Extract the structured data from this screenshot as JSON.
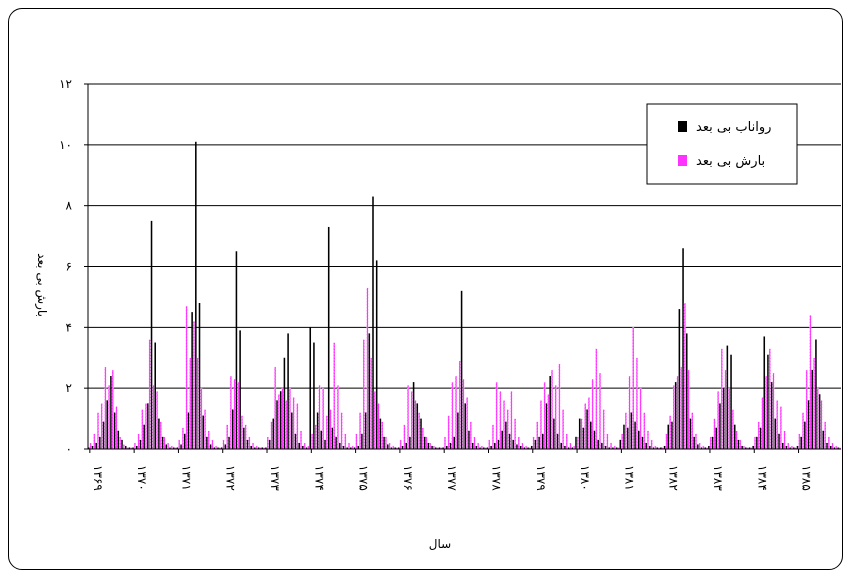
{
  "chart_data": {
    "type": "bar",
    "title": "",
    "xlabel": "سال",
    "ylabel": "بارش بی بعد",
    "ylim": [
      0,
      12
    ],
    "yticks": [
      {
        "value": 0,
        "label": "۰"
      },
      {
        "value": 2,
        "label": "۲"
      },
      {
        "value": 4,
        "label": "۴"
      },
      {
        "value": 6,
        "label": "۶"
      },
      {
        "value": 8,
        "label": "۸"
      },
      {
        "value": 10,
        "label": "۱۰"
      },
      {
        "value": 12,
        "label": "۱۲"
      }
    ],
    "year_labels": [
      "۱۳۶۹",
      "۱۳۷۰",
      "۱۳۷۱",
      "۱۳۷۲",
      "۱۳۷۳",
      "۱۳۷۴",
      "۱۳۷۵",
      "۱۳۷۶",
      "۱۳۷۷",
      "۱۳۷۸",
      "۱۳۷۹",
      "۱۳۸۰",
      "۱۳۸۱",
      "۱۳۸۲",
      "۱۳۸۳",
      "۱۳۸۴",
      "۱۳۸۵"
    ],
    "grid": true,
    "legend": {
      "position": "top-right"
    },
    "series": [
      {
        "name": "رواناب بی بعد",
        "color": "#000000",
        "values": [
          0.05,
          0.1,
          0.2,
          0.4,
          0.9,
          1.6,
          2.4,
          1.2,
          0.6,
          0.3,
          0.1,
          0.05,
          0.05,
          0.1,
          0.3,
          0.8,
          1.5,
          7.5,
          3.5,
          1.0,
          0.4,
          0.15,
          0.05,
          0.05,
          0.05,
          0.15,
          0.5,
          1.2,
          4.5,
          10.1,
          4.8,
          1.1,
          0.4,
          0.15,
          0.05,
          0.05,
          0.05,
          0.15,
          0.4,
          1.3,
          6.5,
          3.9,
          0.7,
          0.3,
          0.1,
          0.05,
          0.05,
          0.05,
          0.05,
          0.3,
          1.0,
          1.6,
          1.9,
          3.0,
          3.8,
          1.2,
          0.5,
          0.2,
          0.1,
          0.05,
          4.0,
          3.5,
          1.2,
          0.6,
          0.3,
          7.3,
          0.7,
          0.4,
          0.2,
          0.1,
          0.05,
          0.05,
          0.05,
          0.1,
          0.5,
          1.2,
          3.8,
          8.3,
          6.2,
          1.0,
          0.4,
          0.15,
          0.05,
          0.05,
          0.05,
          0.1,
          0.2,
          0.4,
          2.2,
          1.5,
          1.0,
          0.4,
          0.2,
          0.1,
          0.05,
          0.05,
          0.05,
          0.1,
          0.2,
          0.4,
          1.2,
          5.2,
          1.5,
          0.6,
          0.2,
          0.1,
          0.05,
          0.05,
          0.05,
          0.1,
          0.2,
          0.3,
          0.6,
          0.9,
          0.5,
          0.3,
          0.15,
          0.1,
          0.05,
          0.05,
          0.1,
          0.3,
          0.4,
          0.5,
          1.5,
          2.4,
          1.0,
          0.5,
          0.2,
          0.1,
          0.05,
          0.05,
          0.4,
          1.0,
          0.7,
          1.3,
          0.9,
          0.6,
          0.3,
          0.2,
          0.1,
          0.05,
          0.05,
          0.05,
          0.3,
          0.8,
          0.7,
          1.2,
          0.9,
          0.6,
          0.4,
          0.2,
          0.1,
          0.05,
          0.05,
          0.05,
          0.1,
          0.8,
          0.9,
          2.2,
          4.6,
          6.6,
          3.8,
          1.0,
          0.4,
          0.15,
          0.05,
          0.05,
          0.1,
          0.4,
          0.7,
          1.5,
          2.0,
          3.4,
          3.1,
          0.8,
          0.3,
          0.1,
          0.05,
          0.05,
          0.1,
          0.4,
          0.7,
          3.7,
          3.1,
          2.2,
          1.0,
          0.5,
          0.2,
          0.1,
          0.05,
          0.05,
          0.1,
          0.4,
          0.9,
          1.6,
          2.6,
          3.6,
          1.8,
          0.6,
          0.2,
          0.1,
          0.05,
          0.05
        ]
      },
      {
        "name": "بارش بی بعد",
        "color": "#ff33ff",
        "values": [
          0.2,
          0.5,
          1.2,
          1.5,
          2.7,
          2.1,
          2.6,
          1.4,
          0.4,
          0.15,
          0.05,
          0.05,
          0.2,
          0.5,
          1.3,
          1.5,
          3.6,
          2.1,
          1.9,
          0.9,
          0.4,
          0.2,
          0.1,
          0.05,
          0.3,
          0.7,
          4.7,
          3.0,
          4.2,
          3.0,
          2.0,
          1.3,
          0.6,
          0.3,
          0.1,
          0.05,
          0.3,
          0.8,
          2.4,
          2.3,
          2.2,
          1.1,
          0.8,
          0.4,
          0.2,
          0.1,
          0.05,
          0.05,
          0.4,
          0.9,
          2.7,
          1.8,
          2.0,
          1.6,
          2.0,
          1.7,
          1.5,
          0.6,
          0.2,
          0.1,
          0.5,
          0.8,
          2.1,
          2.0,
          1.1,
          1.3,
          3.5,
          2.1,
          1.2,
          0.5,
          0.2,
          0.1,
          0.5,
          1.2,
          3.6,
          5.3,
          3.0,
          1.9,
          1.5,
          0.9,
          0.4,
          0.2,
          0.1,
          0.05,
          0.3,
          0.8,
          2.1,
          1.9,
          1.6,
          1.2,
          0.7,
          0.4,
          0.2,
          0.1,
          0.05,
          0.05,
          0.4,
          1.1,
          2.2,
          2.4,
          2.9,
          2.3,
          1.7,
          0.9,
          0.4,
          0.2,
          0.1,
          0.05,
          0.3,
          0.8,
          2.2,
          1.9,
          1.6,
          1.3,
          1.9,
          1.0,
          0.4,
          0.2,
          0.1,
          0.05,
          0.4,
          0.9,
          1.6,
          2.2,
          1.8,
          2.6,
          2.1,
          2.8,
          1.3,
          0.5,
          0.2,
          0.1,
          0.4,
          1.0,
          1.5,
          1.7,
          2.3,
          3.3,
          2.5,
          1.3,
          0.5,
          0.2,
          0.1,
          0.05,
          0.5,
          1.2,
          2.4,
          4.0,
          3.0,
          2.0,
          1.2,
          0.6,
          0.3,
          0.1,
          0.05,
          0.05,
          0.5,
          1.1,
          2.1,
          2.4,
          2.7,
          4.8,
          2.6,
          1.2,
          0.5,
          0.2,
          0.1,
          0.05,
          0.4,
          1.0,
          1.9,
          3.3,
          2.6,
          2.0,
          1.3,
          0.6,
          0.3,
          0.1,
          0.05,
          0.05,
          0.4,
          0.9,
          1.7,
          2.4,
          3.3,
          2.5,
          1.6,
          1.4,
          0.6,
          0.2,
          0.1,
          0.05,
          0.5,
          1.2,
          2.6,
          4.4,
          3.0,
          2.0,
          1.6,
          0.9,
          0.4,
          0.2,
          0.1,
          0.05
        ]
      }
    ]
  }
}
